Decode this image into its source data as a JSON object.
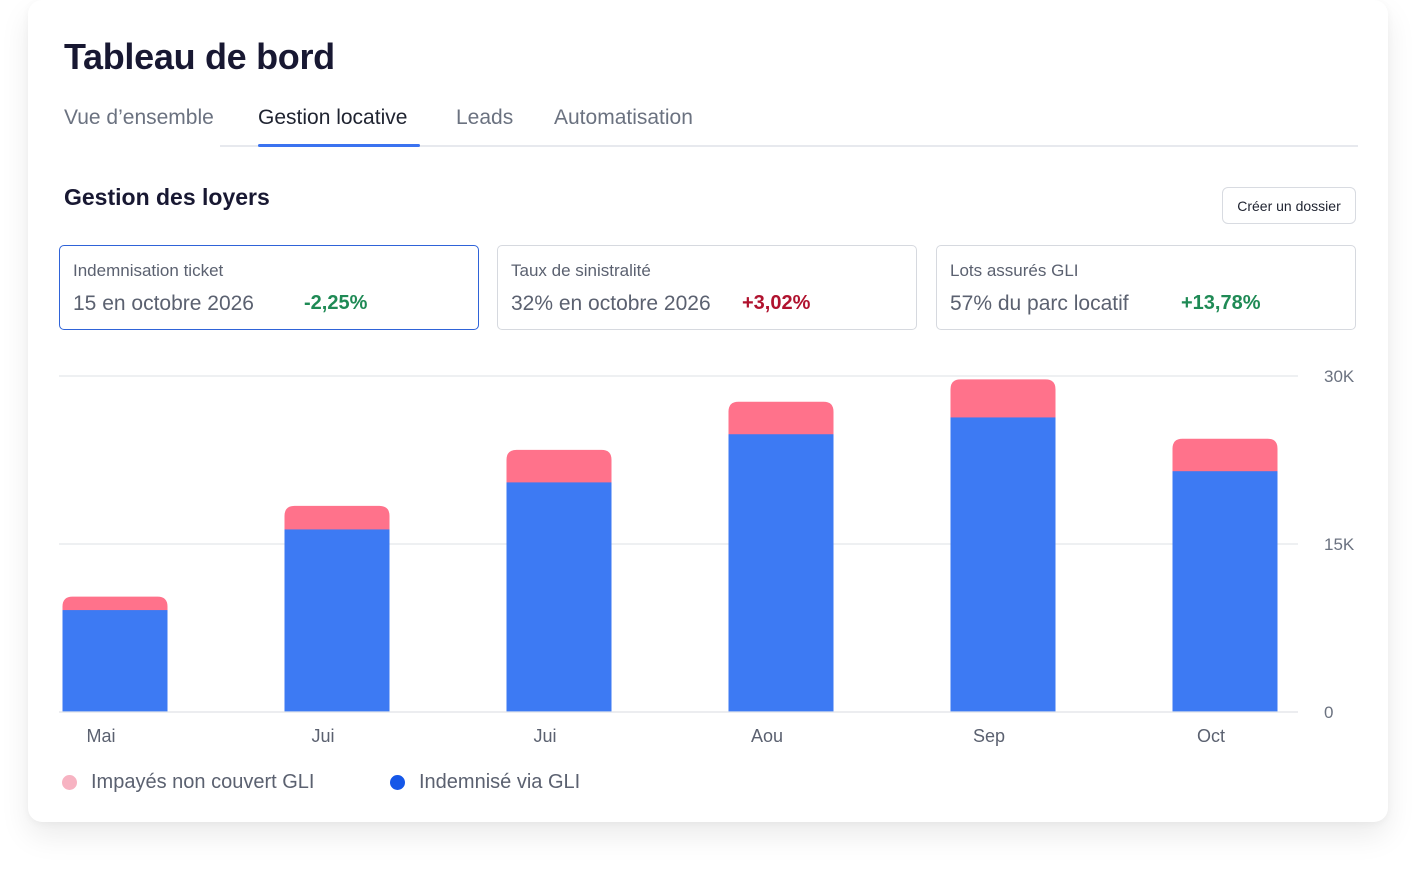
{
  "header": {
    "title": "Tableau de bord"
  },
  "tabs": [
    {
      "label": "Vue d’ensemble",
      "active": false
    },
    {
      "label": "Gestion locative",
      "active": true
    },
    {
      "label": "Leads",
      "active": false
    },
    {
      "label": "Automatisation",
      "active": false
    }
  ],
  "section": {
    "title": "Gestion des loyers",
    "button_label": "Créer un dossier"
  },
  "kpis": [
    {
      "label": "Indemnisation ticket",
      "value": "15 en octobre 2026",
      "delta": "-2,25%",
      "trend": "positive",
      "selected": true
    },
    {
      "label": "Taux de sinistralité",
      "value": "32% en octobre 2026",
      "delta": "+3,02%",
      "trend": "negative",
      "selected": false
    },
    {
      "label": "Lots assurés GLI",
      "value": "57% du parc locatif",
      "delta": "+13,78%",
      "trend": "positive",
      "selected": false
    }
  ],
  "colors": {
    "covered": "#3d7af3",
    "uncovered": "#ff728b",
    "legend_covered": "#1557e8",
    "legend_uncovered": "#f7b3c2"
  },
  "chart_data": {
    "type": "bar",
    "stacked": true,
    "categories": [
      "Mai",
      "Jui",
      "Jui",
      "Aou",
      "Sep",
      "Oct"
    ],
    "series": [
      {
        "name": "Indemnisé via GLI",
        "values": [
          9100,
          16300,
          20500,
          24800,
          26300,
          21500
        ]
      },
      {
        "name": "Impayés non couvert GLI",
        "values": [
          1200,
          2100,
          2900,
          2900,
          3400,
          2900
        ]
      }
    ],
    "ylim": [
      0,
      30000
    ],
    "yticks": [
      0,
      15000,
      30000
    ],
    "ytick_labels": [
      "0",
      "15K",
      "30K"
    ],
    "y_axis_position": "right",
    "grid": true,
    "legend_position": "bottom-left"
  }
}
